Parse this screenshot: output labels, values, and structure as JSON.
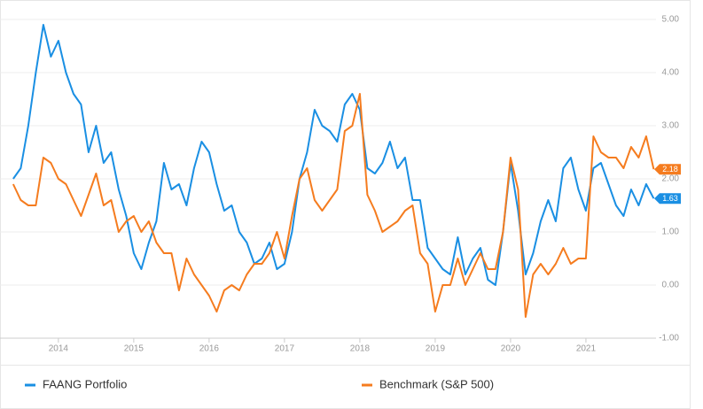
{
  "chart_data": {
    "type": "line",
    "x": [
      2013.4,
      2013.5,
      2013.6,
      2013.7,
      2013.8,
      2013.9,
      2014.0,
      2014.1,
      2014.2,
      2014.3,
      2014.4,
      2014.5,
      2014.6,
      2014.7,
      2014.8,
      2014.9,
      2015.0,
      2015.1,
      2015.2,
      2015.3,
      2015.4,
      2015.5,
      2015.6,
      2015.7,
      2015.8,
      2015.9,
      2016.0,
      2016.1,
      2016.2,
      2016.3,
      2016.4,
      2016.5,
      2016.6,
      2016.7,
      2016.8,
      2016.9,
      2017.0,
      2017.1,
      2017.2,
      2017.3,
      2017.4,
      2017.5,
      2017.6,
      2017.7,
      2017.8,
      2017.9,
      2018.0,
      2018.1,
      2018.2,
      2018.3,
      2018.4,
      2018.5,
      2018.6,
      2018.7,
      2018.8,
      2018.9,
      2019.0,
      2019.1,
      2019.2,
      2019.3,
      2019.4,
      2019.5,
      2019.6,
      2019.7,
      2019.8,
      2019.9,
      2020.0,
      2020.1,
      2020.2,
      2020.3,
      2020.4,
      2020.5,
      2020.6,
      2020.7,
      2020.8,
      2020.9,
      2021.0,
      2021.1,
      2021.2,
      2021.3,
      2021.4,
      2021.5,
      2021.6,
      2021.7,
      2021.8,
      2021.9
    ],
    "series": [
      {
        "name": "FAANG Portfolio",
        "color": "#1a8fe3",
        "values": [
          2.0,
          2.2,
          3.0,
          4.0,
          4.9,
          4.3,
          4.6,
          4.0,
          3.6,
          3.4,
          2.5,
          3.0,
          2.3,
          2.5,
          1.8,
          1.3,
          0.6,
          0.3,
          0.8,
          1.2,
          2.3,
          1.8,
          1.9,
          1.5,
          2.2,
          2.7,
          2.5,
          1.9,
          1.4,
          1.5,
          1.0,
          0.8,
          0.4,
          0.5,
          0.8,
          0.3,
          0.4,
          1.0,
          2.0,
          2.5,
          3.3,
          3.0,
          2.9,
          2.7,
          3.4,
          3.6,
          3.3,
          2.2,
          2.1,
          2.3,
          2.7,
          2.2,
          2.4,
          1.6,
          1.6,
          0.7,
          0.5,
          0.3,
          0.2,
          0.9,
          0.2,
          0.5,
          0.7,
          0.1,
          0.0,
          1.0,
          2.3,
          1.4,
          0.2,
          0.6,
          1.2,
          1.6,
          1.2,
          2.2,
          2.4,
          1.8,
          1.4,
          2.2,
          2.3,
          1.9,
          1.5,
          1.3,
          1.8,
          1.5,
          1.9,
          1.63
        ]
      },
      {
        "name": "Benchmark (S&P 500)",
        "color": "#f57c1f",
        "values": [
          1.9,
          1.6,
          1.5,
          1.5,
          2.4,
          2.3,
          2.0,
          1.9,
          1.6,
          1.3,
          1.7,
          2.1,
          1.5,
          1.6,
          1.0,
          1.2,
          1.3,
          1.0,
          1.2,
          0.8,
          0.6,
          0.6,
          -0.1,
          0.5,
          0.2,
          0.0,
          -0.2,
          -0.5,
          -0.1,
          0.0,
          -0.1,
          0.2,
          0.4,
          0.4,
          0.6,
          1.0,
          0.5,
          1.3,
          2.0,
          2.2,
          1.6,
          1.4,
          1.6,
          1.8,
          2.9,
          3.0,
          3.6,
          1.7,
          1.4,
          1.0,
          1.1,
          1.2,
          1.4,
          1.5,
          0.6,
          0.4,
          -0.5,
          0.0,
          0.0,
          0.5,
          0.0,
          0.3,
          0.6,
          0.3,
          0.3,
          1.0,
          2.4,
          1.8,
          -0.6,
          0.2,
          0.4,
          0.2,
          0.4,
          0.7,
          0.4,
          0.5,
          0.5,
          2.8,
          2.5,
          2.4,
          2.4,
          2.2,
          2.6,
          2.4,
          2.8,
          2.18
        ]
      }
    ],
    "xlim": [
      2013.39,
      2021.93
    ],
    "xticks": [
      2014,
      2015,
      2016,
      2017,
      2018,
      2019,
      2020,
      2021
    ],
    "ylim": [
      -1,
      5
    ],
    "yticks": [
      {
        "value": -1,
        "label": "-1.00"
      },
      {
        "value": 0,
        "label": "0.00"
      },
      {
        "value": 1,
        "label": "1.00"
      },
      {
        "value": 2,
        "label": "2.00"
      },
      {
        "value": 3,
        "label": "3.00"
      },
      {
        "value": 4,
        "label": "4.00"
      },
      {
        "value": 5,
        "label": "5.00"
      }
    ],
    "grid": true
  }
}
